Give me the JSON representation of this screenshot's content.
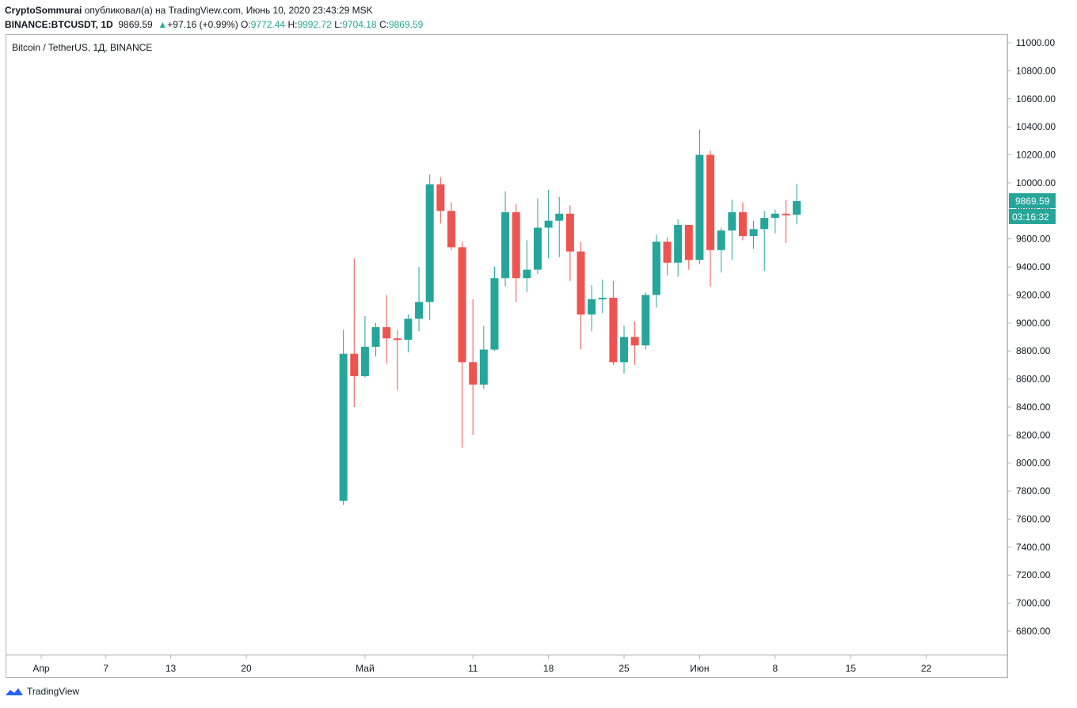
{
  "header": {
    "author": "CryptoSommurai",
    "published_text": "опубликовал(а) на TradingView.com, Июнь 10, 2020 23:43:29 MSK",
    "symbol": "BINANCE:BTCUSDT, 1D",
    "last": "9869.59",
    "change": "+97.16 (+0.99%)",
    "o_label": "O:",
    "o_value": "9772.44",
    "h_label": "H:",
    "h_value": "9992.72",
    "l_label": "L:",
    "l_value": "9704.18",
    "c_label": "C:",
    "c_value": "9869.59"
  },
  "legend": "Bitcoin / TetherUS, 1Д, BINANCE",
  "footer": {
    "brand": "TradingView"
  },
  "colors": {
    "up": "#26a69a",
    "down": "#ef5350",
    "axis": "#b2b5be",
    "text": "#131722"
  },
  "chart_data": {
    "type": "candlestick",
    "title": "Bitcoin / TetherUS, 1Д, BINANCE",
    "ylim": [
      6600,
      11100
    ],
    "y_ticks": [
      6800,
      7000,
      7200,
      7400,
      7600,
      7800,
      8000,
      8200,
      8400,
      8600,
      8800,
      9000,
      9200,
      9400,
      9600,
      9800,
      10000,
      10200,
      10400,
      10600,
      10800,
      11000
    ],
    "x_ticks": [
      {
        "label": "Апр",
        "date": "2020-04-01"
      },
      {
        "label": "7",
        "date": "2020-04-07"
      },
      {
        "label": "13",
        "date": "2020-04-13"
      },
      {
        "label": "20",
        "date": "2020-04-20"
      },
      {
        "label": "Май",
        "date": "2020-05-01"
      },
      {
        "label": "11",
        "date": "2020-05-11"
      },
      {
        "label": "18",
        "date": "2020-05-18"
      },
      {
        "label": "25",
        "date": "2020-05-25"
      },
      {
        "label": "Июн",
        "date": "2020-06-01"
      },
      {
        "label": "8",
        "date": "2020-06-08"
      },
      {
        "label": "15",
        "date": "2020-06-15"
      },
      {
        "label": "22",
        "date": "2020-06-22"
      }
    ],
    "price_label": "9869.59",
    "countdown_label": "03:16:32",
    "candles": [
      {
        "date": "2020-04-29",
        "o": 7730,
        "h": 8950,
        "l": 7700,
        "c": 8780
      },
      {
        "date": "2020-04-30",
        "o": 8780,
        "h": 9460,
        "l": 8400,
        "c": 8620
      },
      {
        "date": "2020-05-01",
        "o": 8620,
        "h": 9050,
        "l": 8610,
        "c": 8830
      },
      {
        "date": "2020-05-02",
        "o": 8830,
        "h": 9000,
        "l": 8760,
        "c": 8970
      },
      {
        "date": "2020-05-03",
        "o": 8970,
        "h": 9200,
        "l": 8710,
        "c": 8890
      },
      {
        "date": "2020-05-04",
        "o": 8890,
        "h": 8950,
        "l": 8520,
        "c": 8880
      },
      {
        "date": "2020-05-05",
        "o": 8880,
        "h": 9060,
        "l": 8790,
        "c": 9030
      },
      {
        "date": "2020-05-06",
        "o": 9030,
        "h": 9400,
        "l": 8940,
        "c": 9150
      },
      {
        "date": "2020-05-07",
        "o": 9150,
        "h": 10060,
        "l": 9020,
        "c": 9990
      },
      {
        "date": "2020-05-08",
        "o": 9990,
        "h": 10040,
        "l": 9710,
        "c": 9800
      },
      {
        "date": "2020-05-09",
        "o": 9800,
        "h": 9860,
        "l": 9520,
        "c": 9540
      },
      {
        "date": "2020-05-10",
        "o": 9540,
        "h": 9580,
        "l": 8110,
        "c": 8720
      },
      {
        "date": "2020-05-11",
        "o": 8720,
        "h": 9170,
        "l": 8200,
        "c": 8560
      },
      {
        "date": "2020-05-12",
        "o": 8560,
        "h": 8980,
        "l": 8530,
        "c": 8810
      },
      {
        "date": "2020-05-13",
        "o": 8810,
        "h": 9400,
        "l": 8800,
        "c": 9320
      },
      {
        "date": "2020-05-14",
        "o": 9320,
        "h": 9940,
        "l": 9260,
        "c": 9790
      },
      {
        "date": "2020-05-15",
        "o": 9790,
        "h": 9850,
        "l": 9150,
        "c": 9320
      },
      {
        "date": "2020-05-16",
        "o": 9320,
        "h": 9590,
        "l": 9220,
        "c": 9380
      },
      {
        "date": "2020-05-17",
        "o": 9380,
        "h": 9890,
        "l": 9350,
        "c": 9680
      },
      {
        "date": "2020-05-18",
        "o": 9680,
        "h": 9950,
        "l": 9460,
        "c": 9730
      },
      {
        "date": "2020-05-19",
        "o": 9730,
        "h": 9900,
        "l": 9470,
        "c": 9780
      },
      {
        "date": "2020-05-20",
        "o": 9780,
        "h": 9840,
        "l": 9300,
        "c": 9510
      },
      {
        "date": "2020-05-21",
        "o": 9510,
        "h": 9580,
        "l": 8810,
        "c": 9060
      },
      {
        "date": "2020-05-22",
        "o": 9060,
        "h": 9270,
        "l": 8940,
        "c": 9170
      },
      {
        "date": "2020-05-23",
        "o": 9170,
        "h": 9310,
        "l": 9070,
        "c": 9180
      },
      {
        "date": "2020-05-24",
        "o": 9180,
        "h": 9300,
        "l": 8700,
        "c": 8720
      },
      {
        "date": "2020-05-25",
        "o": 8720,
        "h": 8980,
        "l": 8640,
        "c": 8900
      },
      {
        "date": "2020-05-26",
        "o": 8900,
        "h": 9010,
        "l": 8700,
        "c": 8840
      },
      {
        "date": "2020-05-27",
        "o": 8840,
        "h": 9220,
        "l": 8810,
        "c": 9200
      },
      {
        "date": "2020-05-28",
        "o": 9200,
        "h": 9630,
        "l": 9110,
        "c": 9580
      },
      {
        "date": "2020-05-29",
        "o": 9580,
        "h": 9610,
        "l": 9340,
        "c": 9430
      },
      {
        "date": "2020-05-30",
        "o": 9430,
        "h": 9740,
        "l": 9330,
        "c": 9700
      },
      {
        "date": "2020-05-31",
        "o": 9700,
        "h": 9700,
        "l": 9380,
        "c": 9450
      },
      {
        "date": "2020-06-01",
        "o": 9450,
        "h": 10380,
        "l": 9420,
        "c": 10200
      },
      {
        "date": "2020-06-02",
        "o": 10200,
        "h": 10230,
        "l": 9260,
        "c": 9520
      },
      {
        "date": "2020-06-03",
        "o": 9520,
        "h": 9680,
        "l": 9360,
        "c": 9660
      },
      {
        "date": "2020-06-04",
        "o": 9660,
        "h": 9880,
        "l": 9450,
        "c": 9790
      },
      {
        "date": "2020-06-05",
        "o": 9790,
        "h": 9860,
        "l": 9590,
        "c": 9620
      },
      {
        "date": "2020-06-06",
        "o": 9620,
        "h": 9730,
        "l": 9530,
        "c": 9670
      },
      {
        "date": "2020-06-07",
        "o": 9670,
        "h": 9800,
        "l": 9370,
        "c": 9750
      },
      {
        "date": "2020-06-08",
        "o": 9750,
        "h": 9810,
        "l": 9640,
        "c": 9780
      },
      {
        "date": "2020-06-09",
        "o": 9780,
        "h": 9880,
        "l": 9570,
        "c": 9770
      },
      {
        "date": "2020-06-10",
        "o": 9772.44,
        "h": 9992.72,
        "l": 9704.18,
        "c": 9869.59
      }
    ]
  }
}
